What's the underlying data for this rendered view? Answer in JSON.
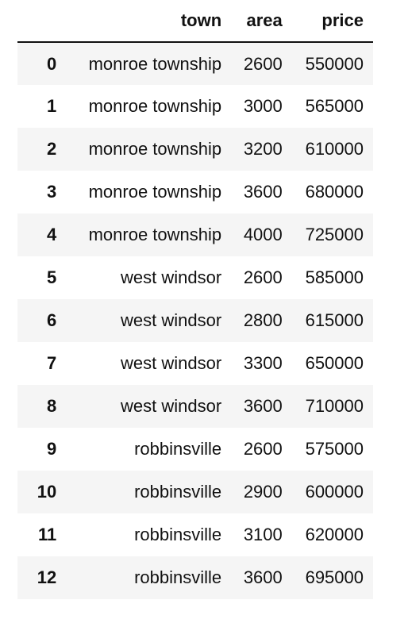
{
  "table": {
    "columns": [
      "town",
      "area",
      "price"
    ],
    "rows": [
      {
        "index": "0",
        "town": "monroe township",
        "area": "2600",
        "price": "550000"
      },
      {
        "index": "1",
        "town": "monroe township",
        "area": "3000",
        "price": "565000"
      },
      {
        "index": "2",
        "town": "monroe township",
        "area": "3200",
        "price": "610000"
      },
      {
        "index": "3",
        "town": "monroe township",
        "area": "3600",
        "price": "680000"
      },
      {
        "index": "4",
        "town": "monroe township",
        "area": "4000",
        "price": "725000"
      },
      {
        "index": "5",
        "town": "west windsor",
        "area": "2600",
        "price": "585000"
      },
      {
        "index": "6",
        "town": "west windsor",
        "area": "2800",
        "price": "615000"
      },
      {
        "index": "7",
        "town": "west windsor",
        "area": "3300",
        "price": "650000"
      },
      {
        "index": "8",
        "town": "west windsor",
        "area": "3600",
        "price": "710000"
      },
      {
        "index": "9",
        "town": "robbinsville",
        "area": "2600",
        "price": "575000"
      },
      {
        "index": "10",
        "town": "robbinsville",
        "area": "2900",
        "price": "600000"
      },
      {
        "index": "11",
        "town": "robbinsville",
        "area": "3100",
        "price": "620000"
      },
      {
        "index": "12",
        "town": "robbinsville",
        "area": "3600",
        "price": "695000"
      }
    ]
  }
}
